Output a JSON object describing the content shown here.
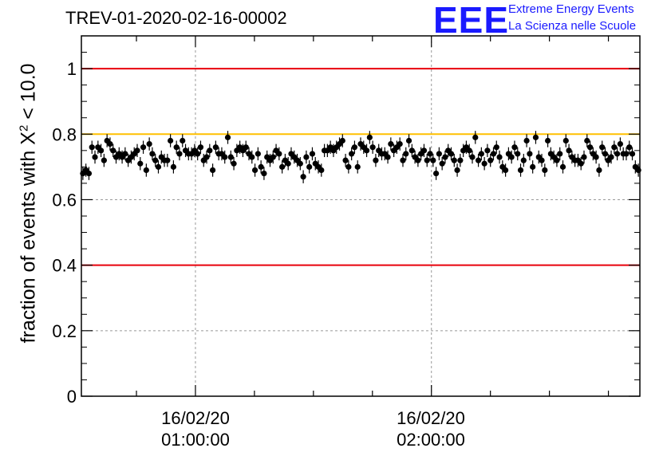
{
  "title": "TREV-01-2020-02-16-00002",
  "logo": {
    "mark": "EEE",
    "line1": "Extreme Energy Events",
    "line2": "La Scienza nelle Scuole"
  },
  "colors": {
    "markers": "#000000",
    "threshold_lines": "#e8000b",
    "reference_line": "#ffc000",
    "logo": "#1a1aff"
  },
  "chart_data": {
    "type": "scatter",
    "ylabel": {
      "prefix": "fraction of events with X",
      "superscript": "2",
      "suffix": " < 10.0"
    },
    "ylim": [
      0,
      1.1
    ],
    "yticks": [
      "0",
      "0.2",
      "0.4",
      "0.6",
      "0.8",
      "1"
    ],
    "xticks": [
      {
        "date": "16/02/20",
        "time": "01:00:00"
      },
      {
        "date": "16/02/20",
        "time": "02:00:00"
      }
    ],
    "x_range_minutes_from_first_tick": [
      -29,
      113
    ],
    "grid": true,
    "reference_lines": [
      {
        "y": 1.0,
        "color": "red"
      },
      {
        "y": 0.4,
        "color": "red"
      },
      {
        "y": 0.8,
        "color": "orange"
      }
    ],
    "error_bar_typical": 0.02,
    "points": [
      0.68,
      0.69,
      0.68,
      0.76,
      0.73,
      0.76,
      0.75,
      0.72,
      0.78,
      0.77,
      0.75,
      0.73,
      0.74,
      0.73,
      0.74,
      0.72,
      0.73,
      0.74,
      0.75,
      0.71,
      0.76,
      0.69,
      0.77,
      0.74,
      0.72,
      0.7,
      0.73,
      0.72,
      0.72,
      0.78,
      0.7,
      0.76,
      0.74,
      0.78,
      0.75,
      0.74,
      0.74,
      0.75,
      0.74,
      0.76,
      0.72,
      0.73,
      0.75,
      0.69,
      0.76,
      0.74,
      0.74,
      0.73,
      0.79,
      0.73,
      0.71,
      0.75,
      0.76,
      0.75,
      0.76,
      0.74,
      0.73,
      0.69,
      0.74,
      0.7,
      0.68,
      0.73,
      0.72,
      0.73,
      0.75,
      0.74,
      0.7,
      0.72,
      0.71,
      0.74,
      0.73,
      0.72,
      0.71,
      0.67,
      0.73,
      0.7,
      0.74,
      0.71,
      0.7,
      0.69,
      0.75,
      0.75,
      0.76,
      0.75,
      0.76,
      0.77,
      0.78,
      0.72,
      0.7,
      0.74,
      0.76,
      0.7,
      0.77,
      0.76,
      0.75,
      0.79,
      0.76,
      0.72,
      0.75,
      0.74,
      0.74,
      0.73,
      0.77,
      0.75,
      0.76,
      0.77,
      0.72,
      0.74,
      0.78,
      0.75,
      0.73,
      0.72,
      0.74,
      0.75,
      0.72,
      0.74,
      0.72,
      0.68,
      0.74,
      0.71,
      0.73,
      0.75,
      0.74,
      0.72,
      0.69,
      0.72,
      0.75,
      0.76,
      0.75,
      0.73,
      0.79,
      0.72,
      0.74,
      0.71,
      0.75,
      0.72,
      0.74,
      0.76,
      0.73,
      0.7,
      0.69,
      0.74,
      0.73,
      0.76,
      0.74,
      0.69,
      0.72,
      0.78,
      0.74,
      0.7,
      0.79,
      0.73,
      0.72,
      0.69,
      0.78,
      0.74,
      0.73,
      0.72,
      0.74,
      0.7,
      0.78,
      0.75,
      0.73,
      0.72,
      0.72,
      0.71,
      0.73,
      0.78,
      0.76,
      0.74,
      0.73,
      0.69,
      0.76,
      0.74,
      0.72,
      0.73,
      0.76,
      0.74,
      0.77,
      0.74,
      0.74,
      0.76,
      0.74,
      0.7,
      0.69
    ]
  }
}
